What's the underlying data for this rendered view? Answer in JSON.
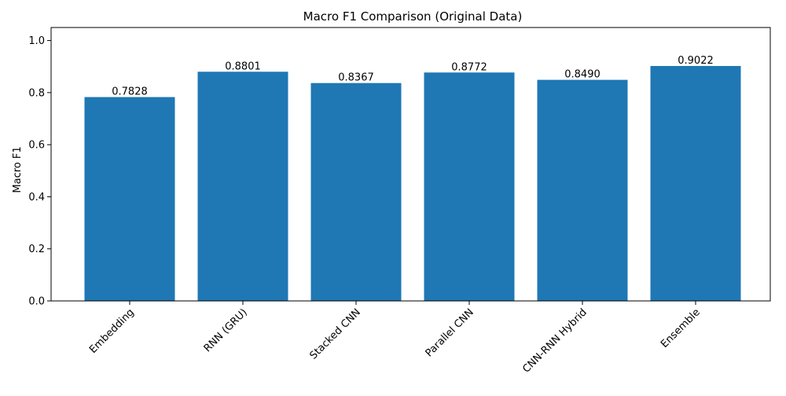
{
  "chart_data": {
    "type": "bar",
    "title": "Macro F1 Comparison (Original Data)",
    "xlabel": "",
    "ylabel": "Macro F1",
    "categories": [
      "Embedding",
      "RNN (GRU)",
      "Stacked CNN",
      "Parallel CNN",
      "CNN-RNN Hybrid",
      "Ensemble"
    ],
    "values": [
      0.7828,
      0.8801,
      0.8367,
      0.8772,
      0.849,
      0.9022
    ],
    "data_labels": [
      "0.7828",
      "0.8801",
      "0.8367",
      "0.8772",
      "0.8490",
      "0.9022"
    ],
    "ylim": [
      0,
      1.05
    ],
    "yticks": [
      0.0,
      0.2,
      0.4,
      0.6,
      0.8,
      1.0
    ],
    "ytick_labels": [
      "0.0",
      "0.2",
      "0.4",
      "0.6",
      "0.8",
      "1.0"
    ],
    "bar_color": "#1f77b4",
    "grid": false,
    "legend": "none"
  }
}
